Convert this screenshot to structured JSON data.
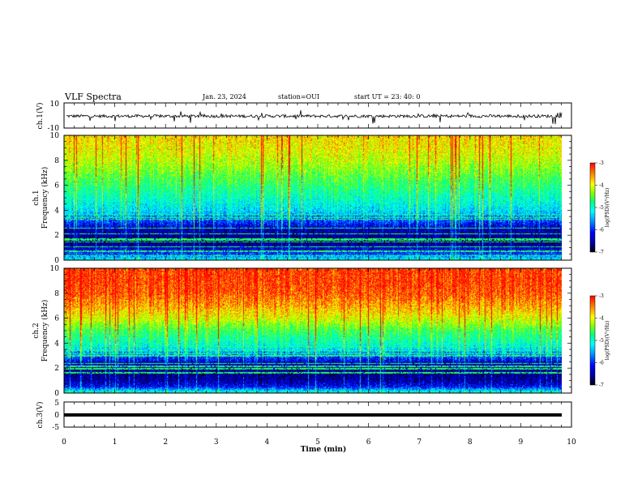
{
  "header": {
    "title": "VLF Spectra",
    "date": "Jan. 23, 2024",
    "station": "station=OUI",
    "start": "start UT =  23: 40: 0"
  },
  "colors": {
    "waveform": "#000000",
    "background": "#ffffff",
    "colormap": [
      "#000000",
      "#0000a0",
      "#0000ff",
      "#00a0ff",
      "#00ffff",
      "#00ff80",
      "#80ff00",
      "#ffff00",
      "#ff8000",
      "#ff0000"
    ]
  },
  "chart_data": [
    {
      "type": "line",
      "panel": "ch1-waveform",
      "ylabel": "ch.1(V)",
      "ylim": [
        -10,
        10
      ],
      "yticks": [
        "10",
        "-10"
      ],
      "xlim": [
        0,
        10
      ],
      "baseline": -0.5,
      "amplitude": 1.2
    },
    {
      "type": "heatmap",
      "panel": "ch1-spectrogram",
      "ylabel": "ch.1\nFrequency (kHz)",
      "ylabel_lines": [
        "ch.1",
        "Frequency (kHz)"
      ],
      "ylim": [
        0,
        10
      ],
      "yticks": [
        "0",
        "2",
        "4",
        "6",
        "8",
        "10"
      ],
      "xlim": [
        0,
        10
      ],
      "colorbar": {
        "label": "log(PSD)(V²/Hz)",
        "range": [
          -7,
          -3
        ],
        "ticks": [
          "-3",
          "-4",
          "-5",
          "-6",
          "-7"
        ]
      },
      "profile_freq_khz": [
        0,
        0.5,
        1,
        1.5,
        2,
        2.5,
        3,
        3.5,
        4,
        5,
        6,
        7,
        8,
        9,
        10
      ],
      "profile_log_psd": [
        -5.2,
        -6.0,
        -6.4,
        -6.7,
        -6.5,
        -6.4,
        -6.0,
        -5.6,
        -5.3,
        -5.0,
        -4.7,
        -4.4,
        -4.1,
        -3.9,
        -3.8
      ]
    },
    {
      "type": "heatmap",
      "panel": "ch2-spectrogram",
      "ylabel": "ch.2\nFrequency (kHz)",
      "ylabel_lines": [
        "ch.2",
        "Frequency (kHz)"
      ],
      "ylim": [
        0,
        10
      ],
      "yticks": [
        "0",
        "2",
        "4",
        "6",
        "8",
        "10"
      ],
      "xlim": [
        0,
        10
      ],
      "colorbar": {
        "label": "log(PSD)(V²/Hz)",
        "range": [
          -7,
          -3
        ],
        "ticks": [
          "-3",
          "-4",
          "-5",
          "-6",
          "-7"
        ]
      },
      "profile_freq_khz": [
        0,
        0.5,
        1,
        1.5,
        2,
        2.5,
        3,
        3.5,
        4,
        5,
        6,
        7,
        8,
        9,
        10
      ],
      "profile_log_psd": [
        -5.0,
        -6.2,
        -6.5,
        -6.6,
        -6.5,
        -6.3,
        -5.8,
        -5.3,
        -5.0,
        -4.6,
        -4.0,
        -3.6,
        -3.3,
        -3.2,
        -3.2
      ]
    },
    {
      "type": "line",
      "panel": "ch3-waveform",
      "ylabel": "ch.3(V)",
      "ylim": [
        -5,
        5
      ],
      "yticks": [
        "5",
        "0",
        "-5"
      ],
      "xlim": [
        0,
        10
      ],
      "baseline": 0,
      "xlabel": "Time (min)",
      "xticks": [
        "0",
        "1",
        "2",
        "3",
        "4",
        "5",
        "6",
        "7",
        "8",
        "9",
        "10"
      ]
    }
  ]
}
